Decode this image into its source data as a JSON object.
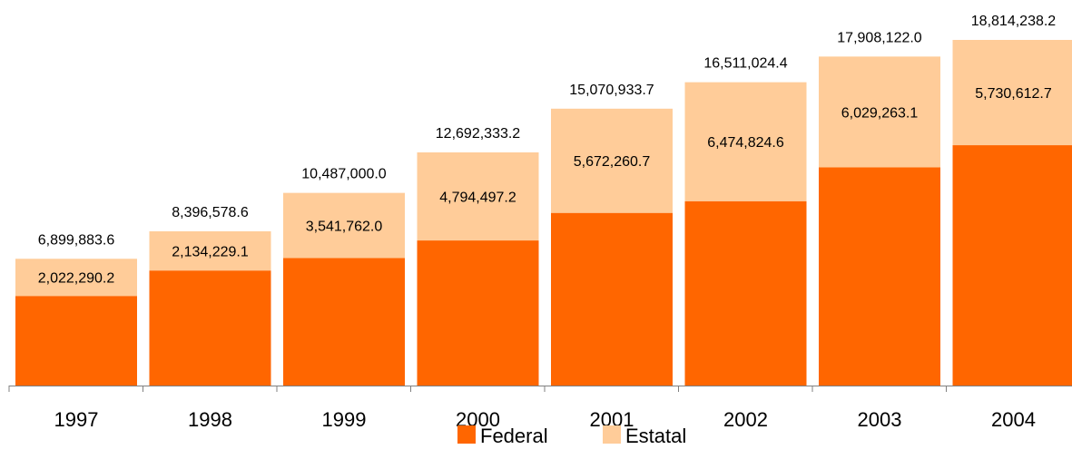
{
  "colors": {
    "federal": "#ff6600",
    "estatal": "#ffcc99",
    "axis": "#808080"
  },
  "chart_data": {
    "type": "bar",
    "stacked": true,
    "categories": [
      "1997",
      "1998",
      "1999",
      "2000",
      "2001",
      "2002",
      "2003",
      "2004"
    ],
    "series": [
      {
        "name": "Federal",
        "values": [
          4877593.4,
          6262349.5,
          6945238.0,
          7897836.0,
          9398673.0,
          10036199.8,
          11878858.9,
          13083625.5
        ]
      },
      {
        "name": "Estatal",
        "values": [
          2022290.2,
          2134229.1,
          3541762.0,
          4794497.2,
          5672260.7,
          6474824.6,
          6029263.1,
          5730612.7
        ],
        "labels": [
          "2,022,290.2",
          "2,134,229.1",
          "3,541,762.0",
          "4,794,497.2",
          "5,672,260.7",
          "6,474,824.6",
          "6,029,263.1",
          "5,730,612.7"
        ]
      }
    ],
    "totals": [
      6899883.6,
      8396578.6,
      10487000.0,
      12692333.2,
      15070933.7,
      16511024.4,
      17908122.0,
      18814238.2
    ],
    "total_labels": [
      "6,899,883.6",
      "8,396,578.6",
      "10,487,000.0",
      "12,692,333.2",
      "15,070,933.7",
      "16,511,024.4",
      "17,908,122.0",
      "18,814,238.2"
    ],
    "ylim": [
      0,
      18814238.2
    ],
    "grid": false,
    "legend_position": "bottom"
  }
}
